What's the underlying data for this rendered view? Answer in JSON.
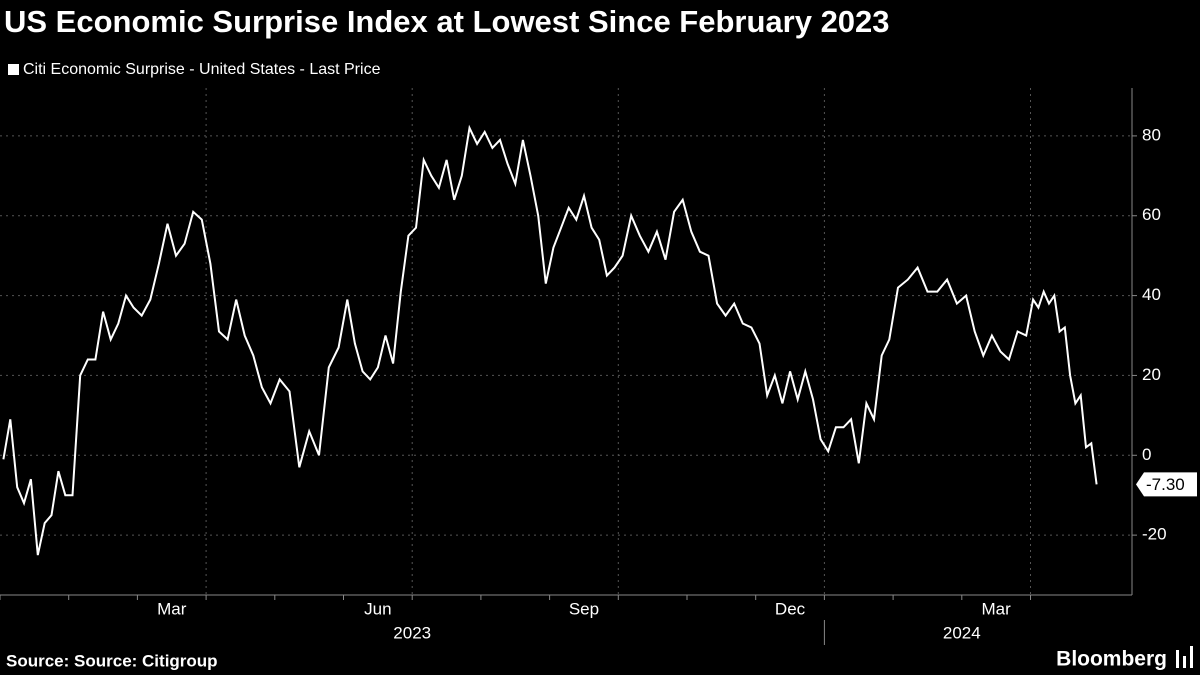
{
  "chart_data": {
    "type": "line",
    "title": "US Economic Surprise Index at Lowest Since February 2023",
    "source": "Source: Source: Citigroup",
    "brand": "Bloomberg",
    "x": [
      "2023-01",
      "2023-01",
      "2023-01",
      "2023-01",
      "2023-01",
      "2023-01",
      "2023-01",
      "2023-01",
      "2023-01",
      "2023-01",
      "2023-02",
      "2023-02",
      "2023-02",
      "2023-02",
      "2023-02",
      "2023-02",
      "2023-02",
      "2023-02",
      "2023-02",
      "2023-03",
      "2023-03",
      "2023-03",
      "2023-03",
      "2023-03",
      "2023-03",
      "2023-03",
      "2023-03",
      "2023-04",
      "2023-04",
      "2023-04",
      "2023-04",
      "2023-04",
      "2023-04",
      "2023-04",
      "2023-04",
      "2023-05",
      "2023-05",
      "2023-05",
      "2023-05",
      "2023-05",
      "2023-05",
      "2023-05",
      "2023-06",
      "2023-06",
      "2023-06",
      "2023-06",
      "2023-06",
      "2023-06",
      "2023-06",
      "2023-06",
      "2023-06",
      "2023-07",
      "2023-07",
      "2023-07",
      "2023-07",
      "2023-07",
      "2023-07",
      "2023-07",
      "2023-07",
      "2023-07",
      "2023-08",
      "2023-08",
      "2023-08",
      "2023-08",
      "2023-08",
      "2023-08",
      "2023-08",
      "2023-08",
      "2023-08",
      "2023-09",
      "2023-09",
      "2023-09",
      "2023-09",
      "2023-09",
      "2023-09",
      "2023-09",
      "2023-09",
      "2023-09",
      "2023-10",
      "2023-10",
      "2023-10",
      "2023-10",
      "2023-10",
      "2023-10",
      "2023-10",
      "2023-10",
      "2023-11",
      "2023-11",
      "2023-11",
      "2023-11",
      "2023-11",
      "2023-11",
      "2023-11",
      "2023-11",
      "2023-12",
      "2023-12",
      "2023-12",
      "2023-12",
      "2023-12",
      "2023-12",
      "2023-12",
      "2023-12",
      "2023-12",
      "2024-01",
      "2024-01",
      "2024-01",
      "2024-01",
      "2024-01",
      "2024-01",
      "2024-01",
      "2024-01",
      "2024-01",
      "2024-02",
      "2024-02",
      "2024-02",
      "2024-02",
      "2024-02",
      "2024-02",
      "2024-02",
      "2024-03",
      "2024-03",
      "2024-03",
      "2024-03",
      "2024-03",
      "2024-03",
      "2024-03",
      "2024-03",
      "2024-04",
      "2024-04",
      "2024-04",
      "2024-04",
      "2024-04",
      "2024-04",
      "2024-04",
      "2024-04",
      "2024-04",
      "2024-04",
      "2024-04",
      "2024-04",
      "2024-04"
    ],
    "series": [
      {
        "name": "Citi Economic Surprise - United States - Last Price",
        "color": "#ffffff",
        "values": [
          -1,
          9,
          -8,
          -12,
          -6,
          -25,
          -17,
          -15,
          -4,
          -10,
          -10,
          20,
          24,
          24,
          36,
          29,
          33,
          40,
          37,
          35,
          39,
          48,
          58,
          50,
          53,
          61,
          59,
          48,
          31,
          29,
          39,
          30,
          25,
          17,
          13,
          19,
          16,
          -3,
          6,
          0,
          22,
          27,
          39,
          28,
          21,
          19,
          22,
          30,
          23,
          41,
          55,
          57,
          74,
          70,
          67,
          74,
          64,
          70,
          82,
          78,
          81,
          77,
          79,
          73,
          68,
          79,
          70,
          60,
          43,
          52,
          57,
          62,
          59,
          65,
          57,
          54,
          45,
          47,
          50,
          60,
          55,
          51,
          56,
          49,
          61,
          64,
          56,
          51,
          50,
          38,
          35,
          38,
          33,
          32,
          28,
          15,
          20,
          13,
          21,
          14,
          21,
          14,
          4,
          1,
          7,
          7,
          9,
          -2,
          13,
          9,
          25,
          29,
          42,
          44,
          47,
          41,
          41,
          44,
          38,
          40,
          31,
          25,
          30,
          26,
          24,
          31,
          30,
          39,
          37,
          41,
          38,
          40,
          31,
          32,
          20,
          13,
          15,
          2,
          3,
          -7.3
        ],
        "value_labels": [
          null,
          null,
          null,
          null,
          null,
          null,
          null,
          null,
          null,
          null,
          null,
          null,
          null,
          null,
          null,
          null,
          null,
          null,
          null,
          null,
          null,
          null,
          null,
          null,
          null,
          null,
          null,
          null,
          null,
          null,
          null,
          null,
          null,
          null,
          null,
          null,
          null,
          null,
          null,
          null,
          null,
          null,
          null,
          null,
          null,
          null,
          null,
          null,
          null,
          null,
          null,
          null,
          null,
          null,
          null,
          null,
          null,
          null,
          null,
          null,
          null,
          null,
          null,
          null,
          null,
          null,
          null,
          null,
          null,
          null,
          null,
          null,
          null,
          null,
          null,
          null,
          null,
          null,
          null,
          null,
          null,
          null,
          null,
          null,
          null,
          null,
          null,
          null,
          null,
          null,
          null,
          null,
          null,
          null,
          null,
          null,
          null,
          null,
          null,
          null,
          null,
          null,
          null,
          null,
          null,
          null,
          null,
          null,
          null,
          null,
          null,
          null,
          null,
          null,
          null,
          null,
          null,
          null,
          null,
          null,
          null,
          null,
          null,
          null,
          null,
          null,
          null,
          null,
          null,
          null,
          null,
          null,
          null,
          null,
          null,
          null,
          null,
          null,
          null,
          "-7.30"
        ]
      }
    ],
    "ylim": [
      -35,
      92
    ],
    "yticks": [
      -20,
      0,
      20,
      40,
      60,
      80
    ],
    "xticks": [
      {
        "value": "2023-03",
        "label": "Mar"
      },
      {
        "value": "2023-06",
        "label": "Jun"
      },
      {
        "value": "2023-09",
        "label": "Sep"
      },
      {
        "value": "2023-12",
        "label": "Dec"
      },
      {
        "value": "2024-03",
        "label": "Mar"
      }
    ],
    "years": [
      "2023",
      "2024"
    ],
    "grid": true
  }
}
